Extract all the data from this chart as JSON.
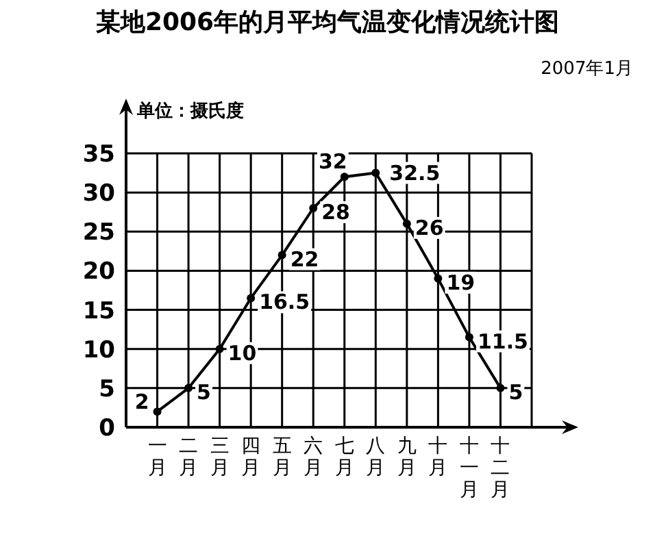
{
  "chart_data": {
    "type": "line",
    "title": "某地2006年的月平均气温变化情况统计图",
    "subtitle": "2007年1月",
    "ylabel": "单位：摄氏度",
    "categories": [
      "一月",
      "二月",
      "三月",
      "四月",
      "五月",
      "六月",
      "七月",
      "八月",
      "九月",
      "十月",
      "十一月",
      "十二月"
    ],
    "series": [
      {
        "color": "#000000",
        "values": [
          2,
          5,
          10,
          16.5,
          22,
          28,
          32,
          32.5,
          26,
          19,
          11.5,
          5
        ]
      }
    ],
    "ylim": [
      0,
      35
    ],
    "yticks": [
      0,
      5,
      10,
      15,
      20,
      25,
      30,
      35
    ],
    "grid": true,
    "marker": "circle",
    "line_style": "solid",
    "data_labels": true
  }
}
